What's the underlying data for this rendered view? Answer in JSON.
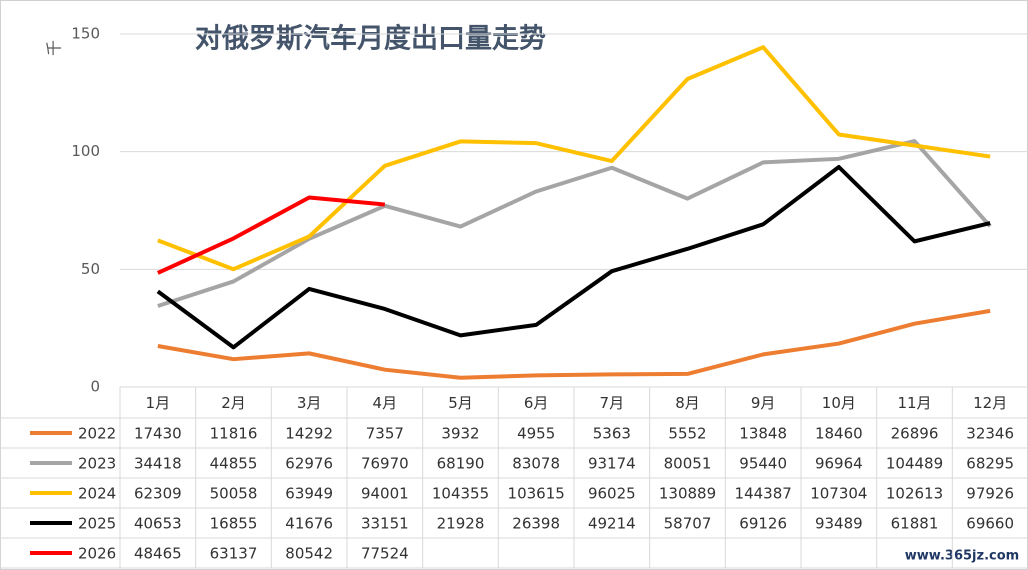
{
  "chart_data": {
    "type": "line",
    "title": "对俄罗斯汽车月度出口量走势",
    "y_label": "千",
    "watermark": "www.365jz.com",
    "categories": [
      "1月",
      "2月",
      "3月",
      "4月",
      "5月",
      "6月",
      "7月",
      "8月",
      "9月",
      "10月",
      "11月",
      "12月"
    ],
    "ylim": [
      0,
      150
    ],
    "yticks": [
      0,
      50,
      100,
      150
    ],
    "grid": true,
    "series": [
      {
        "name": "2022",
        "color": "#ed7d31",
        "values": [
          17.43,
          11.816,
          14.292,
          7.357,
          3.932,
          4.955,
          5.363,
          5.552,
          13.848,
          18.46,
          26.896,
          32.346
        ],
        "value_labels": [
          "17430",
          "11816",
          "14292",
          "7357",
          "3932",
          "4955",
          "5363",
          "5552",
          "13848",
          "18460",
          "26896",
          "32346"
        ]
      },
      {
        "name": "2023",
        "color": "#a5a5a5",
        "values": [
          34.418,
          44.855,
          62.976,
          76.97,
          68.19,
          83.078,
          93.174,
          80.051,
          95.44,
          96.964,
          104.489,
          68.295
        ],
        "value_labels": [
          "34418",
          "44855",
          "62976",
          "76970",
          "68190",
          "83078",
          "93174",
          "80051",
          "95440",
          "96964",
          "104489",
          "68295"
        ]
      },
      {
        "name": "2024",
        "color": "#ffc000",
        "values": [
          62.309,
          50.058,
          63.949,
          94.001,
          104.355,
          103.615,
          96.025,
          130.889,
          144.387,
          107.304,
          102.613,
          97.926
        ],
        "value_labels": [
          "62309",
          "50058",
          "63949",
          "94001",
          "104355",
          "103615",
          "96025",
          "130889",
          "144387",
          "107304",
          "102613",
          "97926"
        ]
      },
      {
        "name": "2025",
        "color": "#000000",
        "values": [
          40.653,
          16.855,
          41.676,
          33.151,
          21.928,
          26.398,
          49.214,
          58.707,
          69.126,
          93.489,
          61.881,
          69.66
        ],
        "value_labels": [
          "40653",
          "16855",
          "41676",
          "33151",
          "21928",
          "26398",
          "49214",
          "58707",
          "69126",
          "93489",
          "61881",
          "69660"
        ]
      },
      {
        "name": "2026",
        "color": "#ff0000",
        "values": [
          48.465,
          63.137,
          80.542,
          77.524,
          null,
          null,
          null,
          null,
          null,
          null,
          null,
          null
        ],
        "value_labels": [
          "48465",
          "63137",
          "80542",
          "77524",
          null,
          null,
          null,
          null,
          null,
          null,
          null,
          null
        ]
      }
    ]
  }
}
